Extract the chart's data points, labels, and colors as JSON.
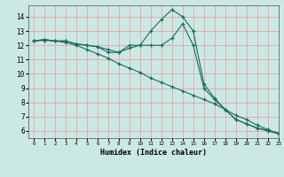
{
  "xlabel": "Humidex (Indice chaleur)",
  "bg_color": "#cce8e4",
  "grid_color": "#e89898",
  "line_color": "#1a6b5e",
  "xlim": [
    -0.5,
    23
  ],
  "ylim": [
    5.5,
    14.8
  ],
  "xticks": [
    0,
    1,
    2,
    3,
    4,
    5,
    6,
    7,
    8,
    9,
    10,
    11,
    12,
    13,
    14,
    15,
    16,
    17,
    18,
    19,
    20,
    21,
    22,
    23
  ],
  "yticks": [
    6,
    7,
    8,
    9,
    10,
    11,
    12,
    13,
    14
  ],
  "series": {
    "top": [
      12.3,
      12.4,
      12.3,
      12.3,
      12.1,
      12.0,
      11.9,
      11.7,
      11.5,
      12.0,
      12.0,
      13.0,
      13.8,
      14.5,
      14.0,
      13.0,
      9.3,
      8.3,
      7.5,
      6.8,
      6.5,
      6.2,
      6.05,
      5.85
    ],
    "mid": [
      12.3,
      12.4,
      12.3,
      12.3,
      12.1,
      12.0,
      11.9,
      11.5,
      11.5,
      11.8,
      12.0,
      12.0,
      12.0,
      12.5,
      13.5,
      12.0,
      9.0,
      8.2,
      7.5,
      6.8,
      6.5,
      6.2,
      6.0,
      5.8
    ],
    "bot": [
      12.3,
      12.35,
      12.3,
      12.2,
      12.0,
      11.7,
      11.4,
      11.1,
      10.7,
      10.4,
      10.1,
      9.7,
      9.4,
      9.1,
      8.8,
      8.5,
      8.2,
      7.9,
      7.5,
      7.1,
      6.8,
      6.4,
      6.1,
      5.8
    ]
  }
}
